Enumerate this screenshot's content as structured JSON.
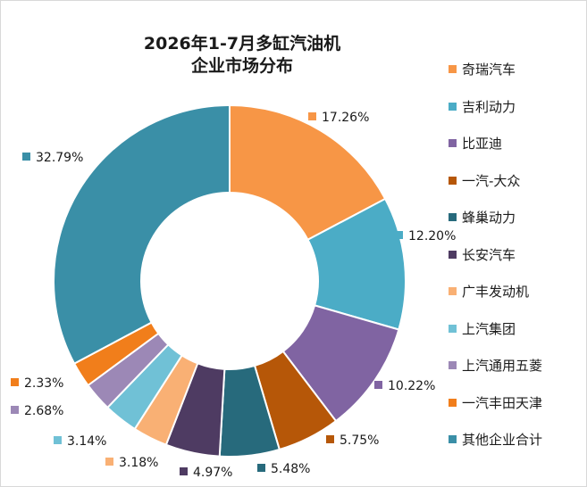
{
  "chart_data": {
    "type": "pie",
    "title_lines": [
      "2026年1-7月多缸汽油机",
      "企业市场分布"
    ],
    "series": [
      {
        "name": "奇瑞汽车",
        "value": 17.26,
        "label": "17.26%",
        "color": "#f79646"
      },
      {
        "name": "吉利动力",
        "value": 12.2,
        "label": "12.20%",
        "color": "#4bacc6"
      },
      {
        "name": "比亚迪",
        "value": 10.22,
        "label": "10.22%",
        "color": "#8064a2"
      },
      {
        "name": "一汽-大众",
        "value": 5.75,
        "label": "5.75%",
        "color": "#b65708"
      },
      {
        "name": "蜂巢动力",
        "value": 5.48,
        "label": "5.48%",
        "color": "#276a7c"
      },
      {
        "name": "长安汽车",
        "value": 4.97,
        "label": "4.97%",
        "color": "#4e3b62"
      },
      {
        "name": "广丰发动机",
        "value": 3.18,
        "label": "3.18%",
        "color": "#f9b074"
      },
      {
        "name": "上汽集团",
        "value": 3.14,
        "label": "3.14%",
        "color": "#70c1d6"
      },
      {
        "name": "上汽通用五菱",
        "value": 2.68,
        "label": "2.68%",
        "color": "#9c88b6"
      },
      {
        "name": "一汽丰田天津",
        "value": 2.33,
        "label": "2.33%",
        "color": "#f17e1b"
      },
      {
        "name": "其他企业合计",
        "value": 32.79,
        "label": "32.79%",
        "color": "#3a8fa7"
      }
    ],
    "legend_position": "right",
    "donut": true
  }
}
